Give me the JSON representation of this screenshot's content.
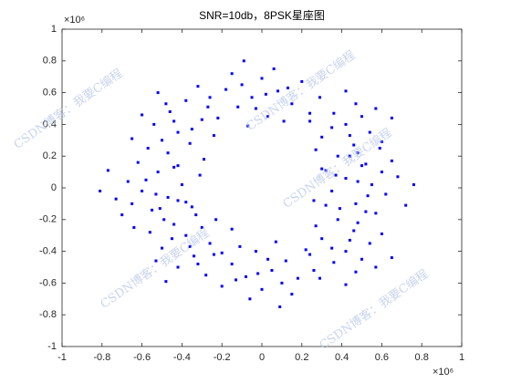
{
  "chart_data": {
    "type": "scatter",
    "title": "SNR=10db，8PSK星座图",
    "x_exponent": "×10⁶",
    "y_exponent": "×10⁶",
    "watermark": "CSDN博客：我要C编程",
    "color": "#0000ff",
    "xlim": [
      -1,
      1
    ],
    "ylim": [
      -1,
      1
    ],
    "xticks": [
      -1,
      -0.8,
      -0.6,
      -0.4,
      -0.2,
      0,
      0.2,
      0.4,
      0.6,
      0.8,
      1
    ],
    "yticks": [
      -1,
      -0.8,
      -0.6,
      -0.4,
      -0.2,
      0,
      0.2,
      0.4,
      0.6,
      0.8,
      1
    ],
    "x": [
      0.55,
      0.42,
      0.62,
      0.47,
      0.5,
      0.68,
      0.35,
      0.57,
      0.44,
      0.72,
      0.3,
      0.6,
      0.39,
      0.53,
      0.48,
      0.65,
      0.26,
      0.59,
      0.37,
      0.76,
      0.42,
      0.46,
      0.36,
      0.3,
      0.54,
      0.47,
      0.38,
      0.24,
      0.6,
      0.29,
      0.52,
      0.5,
      0.27,
      0.35,
      0.44,
      0.57,
      0.32,
      0.65,
      0.48,
      0.42,
      -0.05,
      0.08,
      -0.12,
      0.03,
      0.0,
      -0.18,
      0.15,
      -0.07,
      0.06,
      -0.22,
      0.2,
      -0.1,
      0.11,
      -0.03,
      0.02,
      -0.15,
      0.24,
      -0.09,
      0.13,
      -0.26,
      -0.42,
      -0.46,
      -0.36,
      -0.3,
      -0.54,
      -0.47,
      -0.38,
      -0.24,
      -0.6,
      -0.29,
      -0.52,
      -0.5,
      -0.27,
      -0.35,
      -0.44,
      -0.57,
      -0.32,
      -0.65,
      -0.48,
      -0.42,
      -0.6,
      -0.47,
      -0.67,
      -0.52,
      -0.55,
      -0.73,
      -0.4,
      -0.62,
      -0.49,
      -0.77,
      -0.35,
      -0.65,
      -0.44,
      -0.58,
      -0.53,
      -0.7,
      -0.31,
      -0.64,
      -0.42,
      -0.81,
      -0.38,
      -0.34,
      -0.44,
      -0.5,
      -0.26,
      -0.33,
      -0.42,
      -0.56,
      -0.2,
      -0.51,
      -0.28,
      -0.3,
      -0.53,
      -0.45,
      -0.36,
      -0.23,
      -0.48,
      -0.15,
      -0.32,
      -0.38,
      0.05,
      -0.08,
      0.12,
      -0.03,
      0.0,
      0.18,
      -0.15,
      0.07,
      -0.06,
      0.22,
      -0.2,
      0.1,
      -0.11,
      0.03,
      -0.02,
      0.15,
      -0.24,
      0.09,
      -0.13,
      0.26,
      0.42,
      0.46,
      0.36,
      0.3,
      0.54,
      0.47,
      0.38,
      0.24,
      0.6,
      0.29,
      0.52,
      0.5,
      0.27,
      0.35,
      0.44,
      0.57,
      0.32,
      0.65,
      0.48,
      0.42
    ],
    "y": [
      0.02,
      0.06,
      -0.04,
      -0.1,
      0.14,
      0.07,
      -0.02,
      -0.16,
      0.2,
      -0.11,
      0.12,
      0.1,
      -0.13,
      -0.05,
      0.04,
      0.17,
      -0.08,
      0.25,
      0.08,
      0.02,
      0.4,
      0.27,
      0.47,
      0.32,
      0.35,
      0.53,
      0.2,
      0.42,
      0.29,
      0.57,
      0.15,
      0.45,
      0.24,
      0.38,
      0.33,
      0.5,
      0.11,
      0.44,
      0.22,
      0.61,
      0.57,
      0.61,
      0.51,
      0.45,
      0.69,
      0.62,
      0.53,
      0.39,
      0.75,
      0.44,
      0.67,
      0.65,
      0.42,
      0.5,
      0.59,
      0.72,
      0.47,
      0.8,
      0.63,
      0.57,
      0.35,
      0.48,
      0.28,
      0.43,
      0.4,
      0.22,
      0.55,
      0.33,
      0.46,
      0.18,
      0.6,
      0.3,
      0.51,
      0.37,
      0.42,
      0.25,
      0.64,
      0.31,
      0.53,
      0.14,
      -0.02,
      -0.06,
      0.04,
      0.1,
      -0.14,
      -0.07,
      0.02,
      0.16,
      -0.2,
      0.11,
      -0.12,
      -0.1,
      0.13,
      0.05,
      -0.04,
      -0.17,
      0.08,
      -0.25,
      -0.08,
      -0.02,
      -0.3,
      -0.43,
      -0.23,
      -0.38,
      -0.35,
      -0.17,
      -0.5,
      -0.28,
      -0.41,
      -0.13,
      -0.55,
      -0.25,
      -0.46,
      -0.32,
      -0.37,
      -0.2,
      -0.59,
      -0.26,
      -0.48,
      -0.09,
      -0.52,
      -0.56,
      -0.46,
      -0.4,
      -0.64,
      -0.57,
      -0.48,
      -0.34,
      -0.7,
      -0.39,
      -0.62,
      -0.6,
      -0.37,
      -0.45,
      -0.54,
      -0.67,
      -0.42,
      -0.75,
      -0.58,
      -0.52,
      -0.4,
      -0.27,
      -0.47,
      -0.32,
      -0.35,
      -0.53,
      -0.2,
      -0.42,
      -0.29,
      -0.57,
      -0.15,
      -0.45,
      -0.24,
      -0.38,
      -0.33,
      -0.5,
      -0.11,
      -0.44,
      -0.22,
      -0.61
    ]
  }
}
